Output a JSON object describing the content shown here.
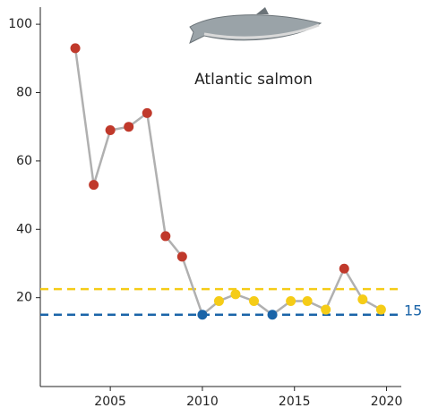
{
  "chart_data": {
    "type": "line",
    "annotation": "Atlantic salmon",
    "x": [
      2003.1,
      2004.1,
      2005.0,
      2006.0,
      2007.0,
      2008.0,
      2008.9,
      2010.0,
      2010.9,
      2011.8,
      2012.8,
      2013.8,
      2014.8,
      2015.7,
      2016.7,
      2017.7,
      2018.7,
      2019.7
    ],
    "series": [
      {
        "values": [
          93,
          53,
          69,
          70,
          74,
          38,
          32,
          15,
          19,
          21,
          19,
          15,
          19,
          19,
          16.5,
          28.5,
          19.5,
          16.5
        ],
        "color": "#b0b0b0",
        "point_colors": [
          "#c0392b",
          "#c0392b",
          "#c0392b",
          "#c0392b",
          "#c0392b",
          "#c0392b",
          "#c0392b",
          "#1a64a8",
          "#f5cc17",
          "#f5cc17",
          "#f5cc17",
          "#1a64a8",
          "#f5cc17",
          "#f5cc17",
          "#f5cc17",
          "#c0392b",
          "#f5cc17",
          "#f5cc17"
        ]
      }
    ],
    "reference_lines": [
      {
        "value": 22.5,
        "color": "#f5cc17"
      },
      {
        "value": 15,
        "color": "#1a64a8",
        "labeled": true
      }
    ],
    "xlim": [
      2001.2,
      2020.8
    ],
    "xticks": [
      2005,
      2010,
      2015,
      2020
    ],
    "ylim": [
      -6,
      105
    ],
    "yticks": [
      20,
      40,
      60,
      80,
      100
    ]
  }
}
